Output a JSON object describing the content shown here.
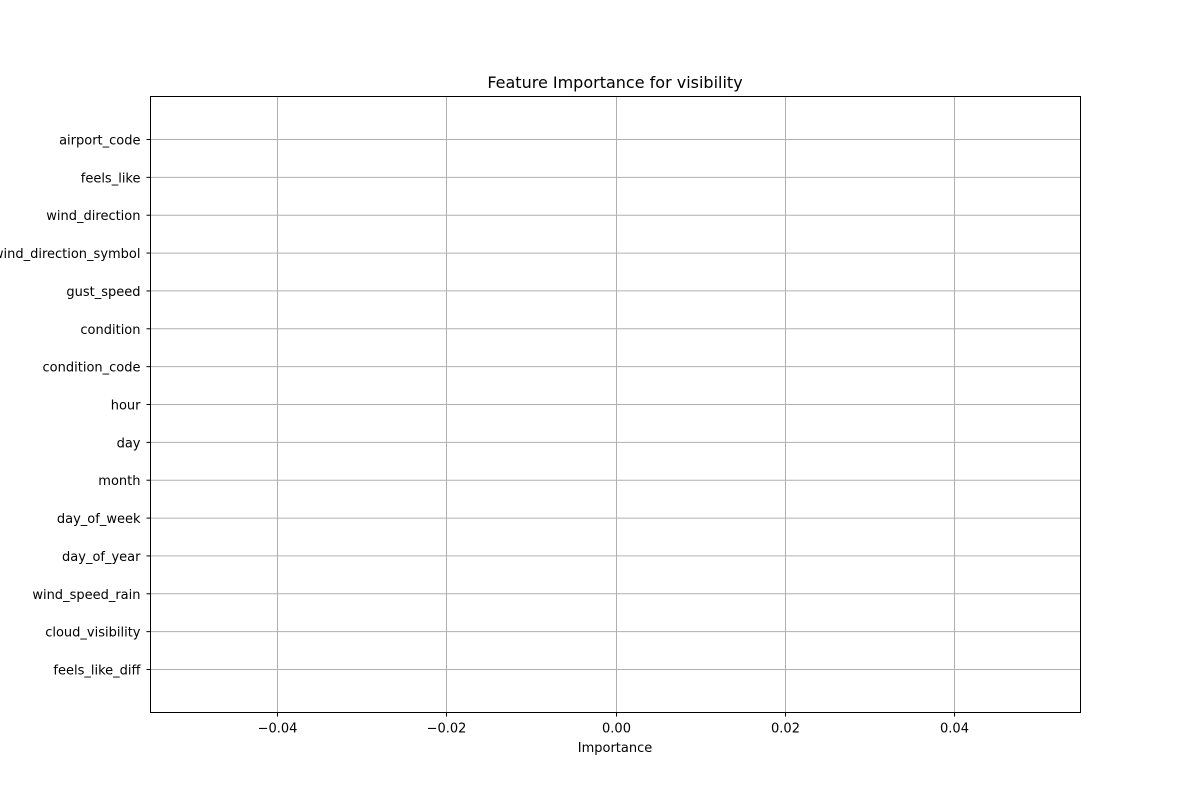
{
  "chart_data": {
    "type": "bar",
    "orientation": "horizontal",
    "title": "Feature Importance for visibility",
    "xlabel": "Importance",
    "ylabel": "",
    "categories": [
      "airport_code",
      "feels_like",
      "wind_direction",
      "wind_direction_symbol",
      "gust_speed",
      "condition",
      "condition_code",
      "hour",
      "day",
      "month",
      "day_of_week",
      "day_of_year",
      "wind_speed_rain",
      "cloud_visibility",
      "feels_like_diff"
    ],
    "values": [
      0,
      0,
      0,
      0,
      0,
      0,
      0,
      0,
      0,
      0,
      0,
      0,
      0,
      0,
      0
    ],
    "xlim": [
      -0.055,
      0.055
    ],
    "xticks": [
      -0.04,
      -0.02,
      0.0,
      0.02,
      0.04
    ],
    "xtick_labels": [
      "−0.04",
      "−0.02",
      "0.00",
      "0.02",
      "0.04"
    ],
    "grid": true,
    "bar_color": "#1f77b4"
  }
}
